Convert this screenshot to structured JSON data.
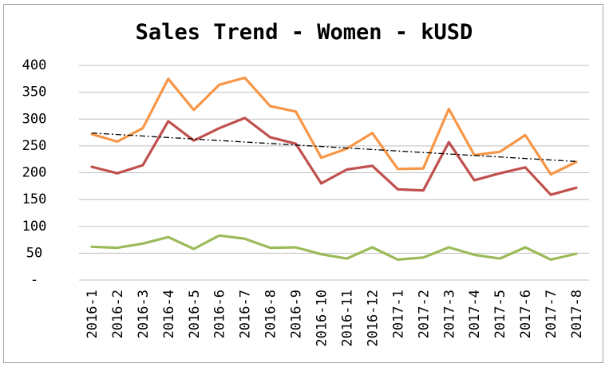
{
  "chart_data": {
    "type": "line",
    "title": "Sales Trend - Women - kUSD",
    "xlabel": "",
    "ylabel": "",
    "categories": [
      "2016-1",
      "2016-2",
      "2016-3",
      "2016-4",
      "2016-5",
      "2016-6",
      "2016-7",
      "2016-8",
      "2016-9",
      "2016-10",
      "2016-11",
      "2016-12",
      "2017-1",
      "2017-2",
      "2017-3",
      "2017-4",
      "2017-5",
      "2017-6",
      "2017-7",
      "2017-8"
    ],
    "ylim": [
      0,
      400
    ],
    "yticks": [
      0,
      50,
      100,
      150,
      200,
      250,
      300,
      350,
      400
    ],
    "ytick_labels": [
      "-",
      "50",
      "100",
      "150",
      "200",
      "250",
      "300",
      "350",
      "400"
    ],
    "grid": true,
    "legend": "none",
    "series": [
      {
        "color": "#f79646",
        "values": [
          272,
          258,
          283,
          375,
          317,
          364,
          377,
          324,
          314,
          228,
          245,
          274,
          207,
          208,
          319,
          233,
          239,
          270,
          197,
          220
        ]
      },
      {
        "color": "#c0504d",
        "values": [
          211,
          199,
          214,
          296,
          260,
          283,
          302,
          266,
          254,
          180,
          206,
          213,
          169,
          167,
          257,
          186,
          199,
          210,
          159,
          172
        ]
      },
      {
        "color": "#9bbb59",
        "values": [
          62,
          60,
          68,
          80,
          58,
          83,
          77,
          60,
          61,
          48,
          40,
          61,
          38,
          42,
          61,
          47,
          40,
          61,
          38,
          49
        ]
      }
    ],
    "trendline": {
      "series_index": 0,
      "type": "linear",
      "color": "#000000",
      "start": 274,
      "end": 221
    }
  }
}
